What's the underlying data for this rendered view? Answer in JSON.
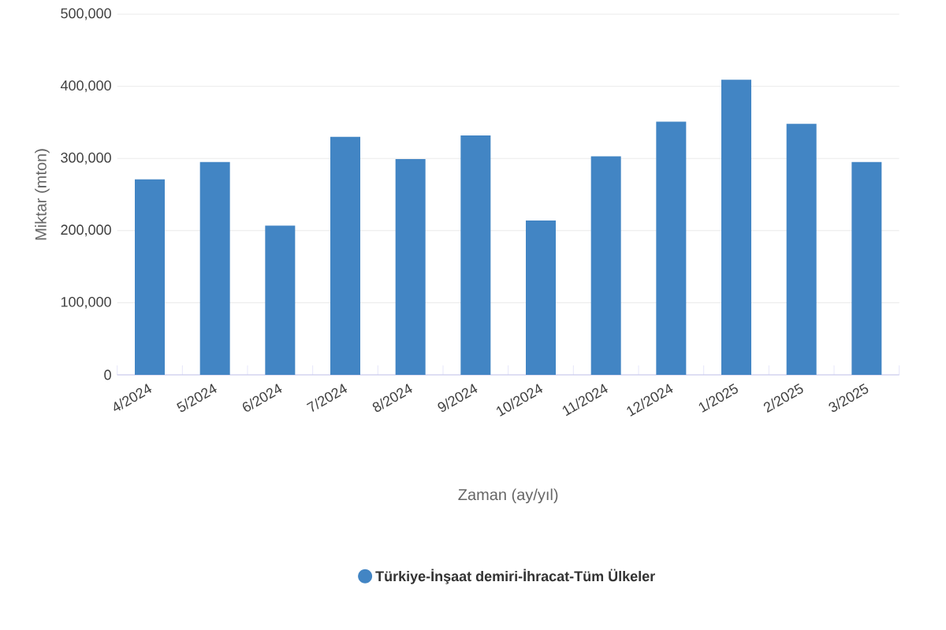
{
  "chart_data": {
    "type": "bar",
    "xlabel": "Zaman (ay/yıl)",
    "ylabel": "Miktar (mton)",
    "categories": [
      "4/2024",
      "5/2024",
      "6/2024",
      "7/2024",
      "8/2024",
      "9/2024",
      "10/2024",
      "11/2024",
      "12/2024",
      "1/2025",
      "2/2025",
      "3/2025"
    ],
    "series": [
      {
        "name": "Türkiye-İnşaat demiri-İhracat-Tüm Ülkeler",
        "color": "#4285c4",
        "values": [
          271000,
          295000,
          207000,
          330000,
          299000,
          332000,
          214000,
          303000,
          351000,
          409000,
          348000,
          295000
        ]
      }
    ],
    "ylim": [
      0,
      500000
    ],
    "yticks": [
      {
        "value": 0,
        "label": "0"
      },
      {
        "value": 100000,
        "label": "100,000"
      },
      {
        "value": 200000,
        "label": "200,000"
      },
      {
        "value": 300000,
        "label": "300,000"
      },
      {
        "value": 400000,
        "label": "400,000"
      },
      {
        "value": 500000,
        "label": "500,000"
      }
    ],
    "grid": "y",
    "legend": "bottom"
  }
}
